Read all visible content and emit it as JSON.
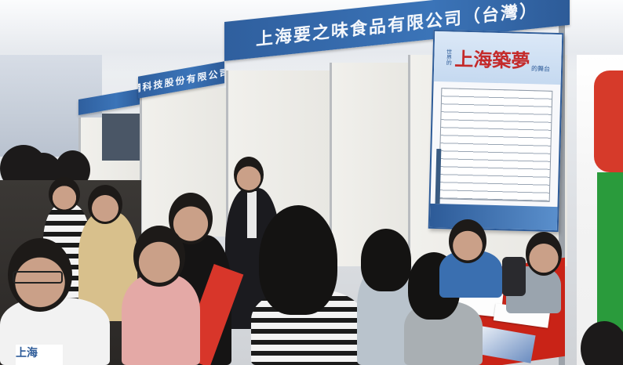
{
  "signage": {
    "fascia_main": "上海要之味食品有限公司（台灣）",
    "fascia_left": "上海聯網科技股份有限公司(台灣)"
  },
  "poster": {
    "prefix": "世界的",
    "title": "上海築夢",
    "suffix": "的舞台"
  },
  "bag_text": "上海",
  "colors": {
    "fascia_blue": "#3b74b8",
    "table_red": "#c92317",
    "banner_green": "#2a9b3c",
    "banner_red": "#d63a2a"
  }
}
